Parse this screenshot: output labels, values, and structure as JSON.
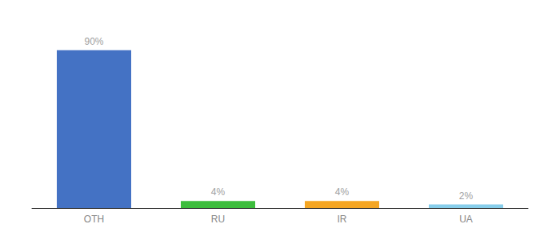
{
  "chart_data": {
    "type": "bar",
    "categories": [
      "OTH",
      "RU",
      "IR",
      "UA"
    ],
    "values": [
      90,
      4,
      4,
      2
    ],
    "value_labels": [
      "90%",
      "4%",
      "4%",
      "2%"
    ],
    "colors": [
      "#4472C4",
      "#3DBD3D",
      "#F5A623",
      "#87CEEB"
    ],
    "ylim": [
      0,
      105
    ],
    "grid": false,
    "data_labels": true,
    "tick_labels": "x"
  }
}
